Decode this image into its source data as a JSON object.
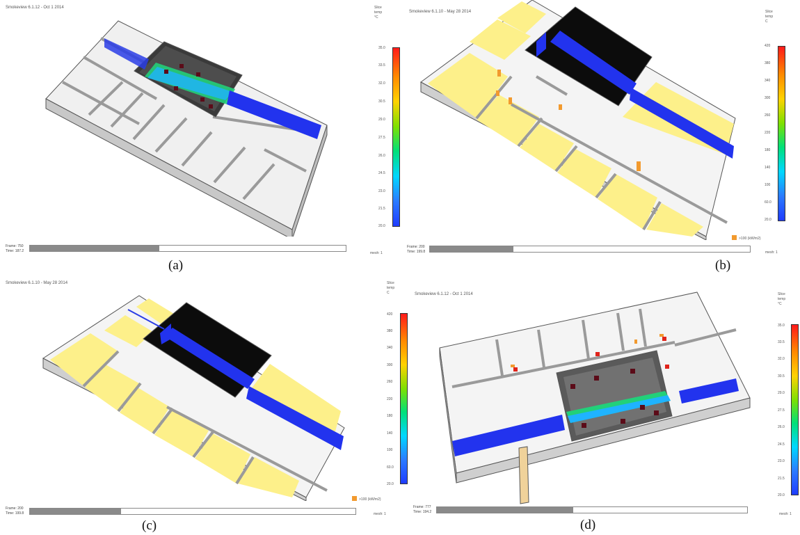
{
  "colors": {
    "floor_white": "#f2f2f2",
    "floor_yellow": "#fdf08a",
    "wall": "#d0d0d0",
    "edge": "#555555",
    "blue_slice": "#2233ee",
    "smoke_dark": "#111111",
    "hot_spot": "#e0241b",
    "particle": "#f29a2e"
  },
  "panels": [
    {
      "caption": "(a)",
      "title": "Smokeview 6.1.12 - Oct 1 2014",
      "colorbar_label": [
        "Slice",
        "temp",
        "°C"
      ],
      "ticks": [
        "35.0",
        "33.5",
        "32.0",
        "30.5",
        "29.0",
        "27.5",
        "26.0",
        "24.5",
        "23.0",
        "21.5",
        "20.0"
      ],
      "frame": "Frame: 750",
      "time": "Time: 187.2",
      "progress": 0.41,
      "mesh": "mesh: 1",
      "legend": "",
      "icons": [
        "colorbar-icon",
        "slider-icon"
      ]
    },
    {
      "caption": "(b)",
      "title": "Smokeview 6.1.10 - May 28 2014",
      "colorbar_label": [
        "Slice",
        "temp",
        "C"
      ],
      "ticks": [
        "420",
        "380",
        "340",
        "300",
        "260",
        "220",
        "180",
        "140",
        "100",
        "60.0",
        "20.0"
      ],
      "frame": "Frame: 200",
      "time": "Time: 199.8",
      "progress": 0.26,
      "mesh": "mesh: 1",
      "legend": ">100 (kW/m2)",
      "icons": [
        "colorbar-icon",
        "slider-icon",
        "particle-legend-icon"
      ]
    },
    {
      "caption": "(c)",
      "title": "Smokeview 6.1.10 - May 28 2014",
      "colorbar_label": [
        "Slice",
        "temp",
        "C"
      ],
      "ticks": [
        "420",
        "380",
        "340",
        "300",
        "260",
        "220",
        "180",
        "140",
        "100",
        "60.0",
        "20.0"
      ],
      "frame": "Frame: 200",
      "time": "Time: 199.8",
      "progress": 0.28,
      "mesh": "mesh: 1",
      "legend": ">100 (kW/m2)",
      "icons": [
        "colorbar-icon",
        "slider-icon",
        "particle-legend-icon"
      ]
    },
    {
      "caption": "(d)",
      "title": "Smokeview 6.1.12 - Oct 1 2014",
      "colorbar_label": [
        "Slice",
        "temp",
        "°C"
      ],
      "ticks": [
        "35.0",
        "33.5",
        "32.0",
        "30.5",
        "29.0",
        "27.5",
        "26.0",
        "24.5",
        "23.0",
        "21.5",
        "20.0"
      ],
      "frame": "Frame: 777",
      "time": "Time: 194.2",
      "progress": 0.44,
      "mesh": "mesh: 1",
      "legend": "",
      "icons": [
        "colorbar-icon",
        "slider-icon"
      ]
    }
  ]
}
